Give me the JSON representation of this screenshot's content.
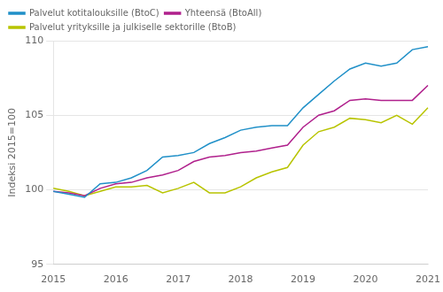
{
  "chart_data": {
    "type": "line",
    "ylabel": "Indeksi 2015=100",
    "categories": [
      2015,
      null,
      null,
      null,
      2016,
      null,
      null,
      null,
      2017,
      null,
      null,
      null,
      2018,
      null,
      null,
      null,
      2019,
      null,
      null,
      null,
      2020,
      null,
      null,
      null,
      2021
    ],
    "series": [
      {
        "name": "Palvelut kotitalouksille (BtoC)",
        "color": "#2090c8",
        "values": [
          99.9,
          99.7,
          99.5,
          100.4,
          100.5,
          100.8,
          101.3,
          102.2,
          102.3,
          102.5,
          103.1,
          103.5,
          104.0,
          104.2,
          104.3,
          104.3,
          105.5,
          106.4,
          107.3,
          108.1,
          108.5,
          108.3,
          108.5,
          109.4,
          109.6
        ]
      },
      {
        "name": "Yhteensä (BtoAll)",
        "color": "#b0208c",
        "values": [
          99.9,
          99.8,
          99.6,
          100.1,
          100.4,
          100.5,
          100.8,
          101.0,
          101.3,
          101.9,
          102.2,
          102.3,
          102.5,
          102.6,
          102.8,
          103.0,
          104.2,
          105.0,
          105.3,
          106.0,
          106.1,
          106.0,
          106.0,
          106.0,
          107.0
        ]
      },
      {
        "name": "Palvelut yrityksille ja julkiselle sektorille (BtoB)",
        "color": "#b8c400",
        "values": [
          100.1,
          99.9,
          99.6,
          99.9,
          100.2,
          100.2,
          100.3,
          99.8,
          100.1,
          100.5,
          99.8,
          99.8,
          100.2,
          100.8,
          101.2,
          101.5,
          103.0,
          103.9,
          104.2,
          104.8,
          104.7,
          104.5,
          105.0,
          104.4,
          105.5
        ]
      }
    ],
    "ylim": [
      95,
      110
    ],
    "yticks": [
      95,
      100,
      105,
      110
    ],
    "grid": "y",
    "legend": "upper left"
  }
}
